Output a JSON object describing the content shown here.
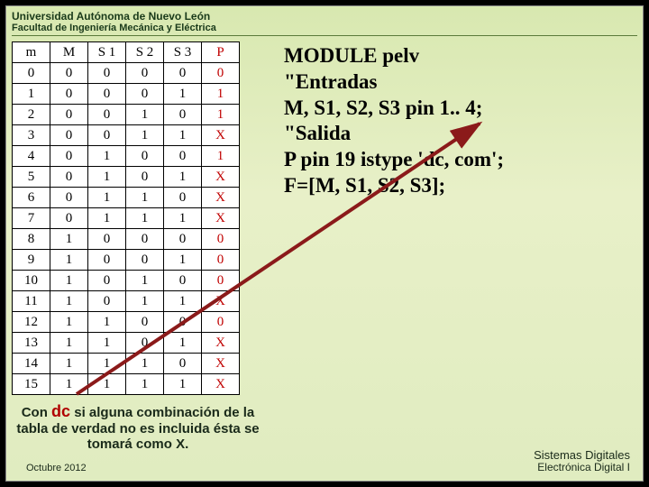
{
  "header": {
    "university": "Universidad Autónoma de Nuevo León",
    "faculty": "Facultad de Ingeniería Mecánica y Eléctrica"
  },
  "table": {
    "headers": [
      "m",
      "M",
      "S 1",
      "S 2",
      "S 3",
      "P"
    ],
    "rows": [
      [
        "0",
        "0",
        "0",
        "0",
        "0",
        "0"
      ],
      [
        "1",
        "0",
        "0",
        "0",
        "1",
        "1"
      ],
      [
        "2",
        "0",
        "0",
        "1",
        "0",
        "1"
      ],
      [
        "3",
        "0",
        "0",
        "1",
        "1",
        "X"
      ],
      [
        "4",
        "0",
        "1",
        "0",
        "0",
        "1"
      ],
      [
        "5",
        "0",
        "1",
        "0",
        "1",
        "X"
      ],
      [
        "6",
        "0",
        "1",
        "1",
        "0",
        "X"
      ],
      [
        "7",
        "0",
        "1",
        "1",
        "1",
        "X"
      ],
      [
        "8",
        "1",
        "0",
        "0",
        "0",
        "0"
      ],
      [
        "9",
        "1",
        "0",
        "0",
        "1",
        "0"
      ],
      [
        "10",
        "1",
        "0",
        "1",
        "0",
        "0"
      ],
      [
        "11",
        "1",
        "0",
        "1",
        "1",
        "X"
      ],
      [
        "12",
        "1",
        "1",
        "0",
        "0",
        "0"
      ],
      [
        "13",
        "1",
        "1",
        "0",
        "1",
        "X"
      ],
      [
        "14",
        "1",
        "1",
        "1",
        "0",
        "X"
      ],
      [
        "15",
        "1",
        "1",
        "1",
        "1",
        "X"
      ]
    ]
  },
  "code": {
    "l1": "MODULE pelv",
    "l2": "\"Entradas",
    "l3": "M, S1, S2, S3 pin 1.. 4;",
    "l4": "\"Salida",
    "l5": "P pin 19 istype 'dc, com';",
    "l6": "F=[M, S1, S2, S3];"
  },
  "caption": {
    "pre": "Con ",
    "dc": "dc",
    "post": " si alguna combinación de la tabla de verdad no es incluida ésta se tomará como X."
  },
  "footer": {
    "date": "Octubre 2012",
    "course1": "Sistemas Digitales",
    "course2": "Electrónica Digital I"
  },
  "style": {
    "arrow_color": "#8b1a1a",
    "p_color": "#c00000",
    "dc_color": "#b00000",
    "bg_top": "#d8e8b0",
    "bg_bottom": "#e0ecc0"
  }
}
